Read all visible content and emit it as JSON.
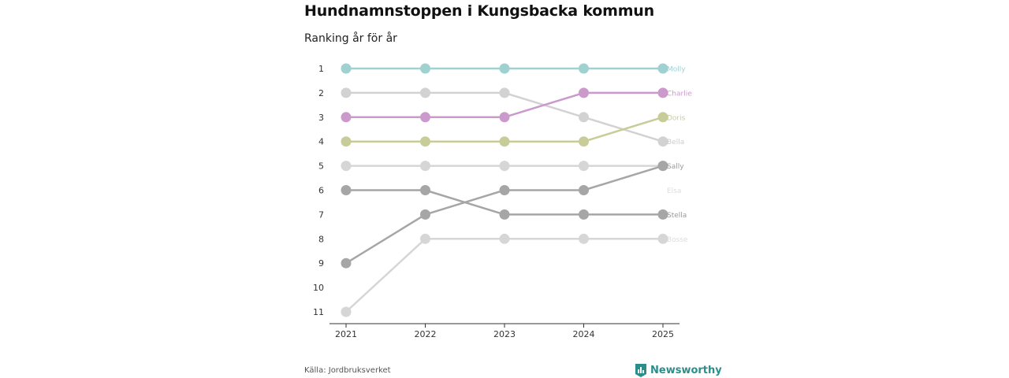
{
  "title": "Hundnamnstoppen i Kungsbacka kommun",
  "subtitle": "Ranking år för år",
  "source": "Källa: Jordbruksverket",
  "brand": "Newsworthy",
  "colors": {
    "brand": "#2a8f8a"
  },
  "chart_data": {
    "type": "line",
    "chart_kind": "bump",
    "categories": [
      "2021",
      "2022",
      "2023",
      "2024",
      "2025"
    ],
    "y_ticks": [
      "1",
      "2",
      "3",
      "4",
      "5",
      "6",
      "7",
      "8",
      "9",
      "10",
      "11"
    ],
    "ylim": [
      1,
      11
    ],
    "y_inverted": true,
    "series": [
      {
        "name": "Molly",
        "ranks": [
          1,
          1,
          1,
          1,
          1
        ],
        "color": "#9ed1d0",
        "label_color": "#9ed1d0"
      },
      {
        "name": "Bella",
        "ranks": [
          2,
          2,
          2,
          3,
          4
        ],
        "color": "#d2d2d2",
        "label_color": "#cccccc"
      },
      {
        "name": "Charlie",
        "ranks": [
          3,
          3,
          3,
          2,
          2
        ],
        "color": "#cc99cc",
        "label_color": "#cc99cc"
      },
      {
        "name": "Doris",
        "ranks": [
          4,
          4,
          4,
          4,
          3
        ],
        "color": "#c8cc98",
        "label_color": "#c8cc98"
      },
      {
        "name": "Sally",
        "ranks": [
          9,
          7,
          6,
          6,
          5
        ],
        "color": "#a6a6a6",
        "label_color": "#999999"
      },
      {
        "name": "Elsa",
        "ranks": [
          5,
          5,
          5,
          5,
          5
        ],
        "color": "#d6d6d6",
        "label_color": "#dddddd",
        "label_rank": 6
      },
      {
        "name": "Stella",
        "ranks": [
          6,
          6,
          7,
          7,
          7
        ],
        "color": "#a6a6a6",
        "label_color": "#999999"
      },
      {
        "name": "Bosse",
        "ranks": [
          11,
          8,
          8,
          8,
          8
        ],
        "color": "#d6d6d6",
        "label_color": "#dddddd"
      }
    ]
  }
}
